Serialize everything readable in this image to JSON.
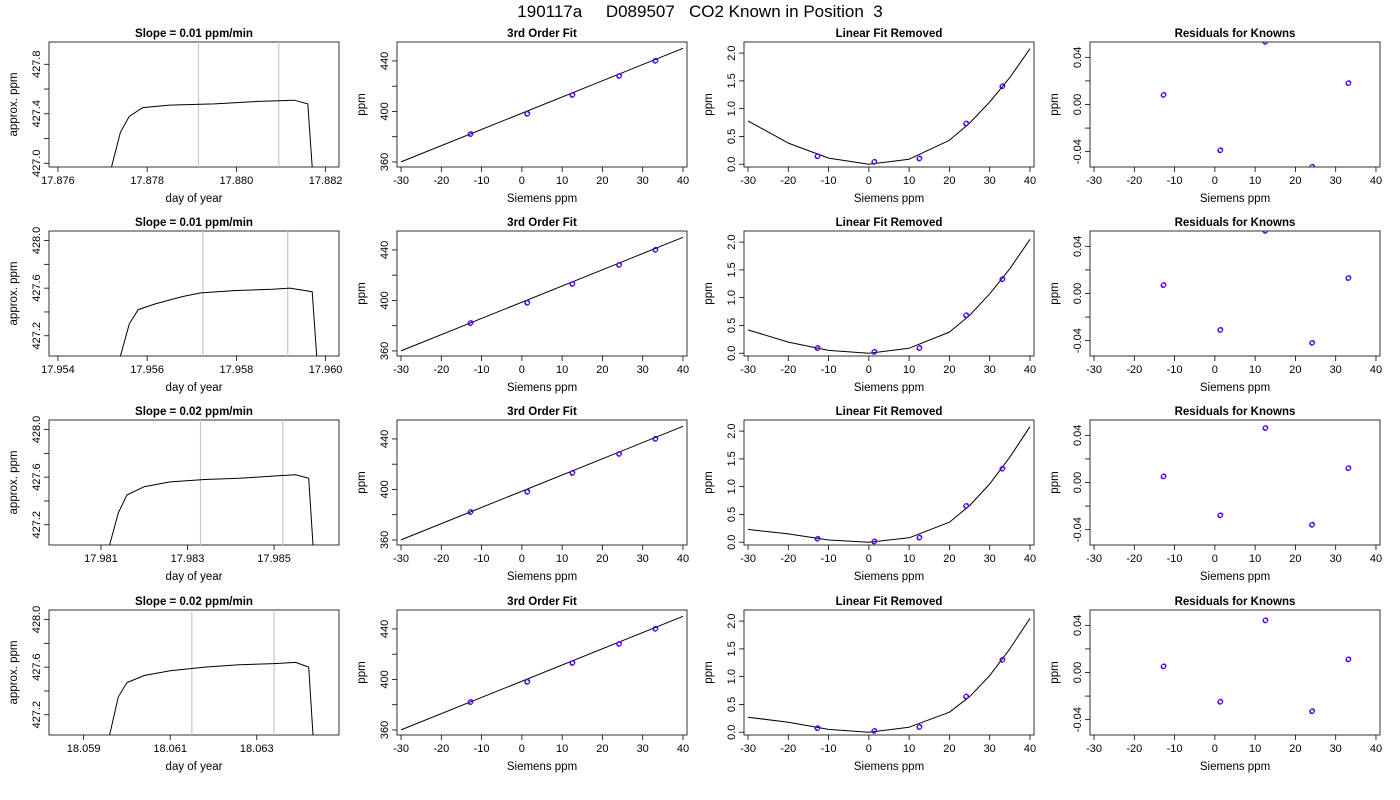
{
  "title": "190117a     D089507   CO2 Known in Position  3",
  "colors": {
    "line": "#000000",
    "vline": "#c8c8c8",
    "point_blue": "#0000ff",
    "point_purple": "#9400d3",
    "point_red": "#ff0000",
    "axis": "#000000"
  },
  "chart_data": [
    {
      "type": "line",
      "title": "Slope =  0.01  ppm/min",
      "xlabel": "day of year",
      "ylabel": "approx. ppm",
      "xlim": [
        17.8758,
        17.8823
      ],
      "ylim": [
        426.97,
        427.98
      ],
      "xticks": [
        "17.876",
        "17.878",
        "17.880",
        "17.882"
      ],
      "yticks": [
        "427.0",
        "427.4",
        "427.8"
      ],
      "extra_yticks": [
        427.2,
        427.6
      ],
      "vlines": [
        17.87915,
        17.88095
      ],
      "series": [
        {
          "x": [
            17.8772,
            17.8774,
            17.8776,
            17.8779,
            17.8785,
            17.8795,
            17.8805,
            17.8813,
            17.8816,
            17.8817
          ],
          "y": [
            426.97,
            427.25,
            427.38,
            427.45,
            427.47,
            427.48,
            427.5,
            427.51,
            427.48,
            426.97
          ]
        }
      ]
    },
    {
      "type": "scatter",
      "title": "3rd Order Fit",
      "xlabel": "Siemens ppm",
      "ylabel": "ppm",
      "xlim": [
        -31,
        41
      ],
      "ylim": [
        356,
        455
      ],
      "xticks": [
        "-30",
        "-20",
        "-10",
        "0",
        "10",
        "20",
        "30",
        "40"
      ],
      "yticks": [
        "360",
        "400",
        "440"
      ],
      "extra_yticks": [
        380,
        420
      ],
      "points": {
        "x": [
          -12.8,
          1.3,
          12.5,
          24.1,
          33.1
        ],
        "y": [
          382,
          398,
          413,
          428,
          440
        ]
      },
      "fit": {
        "x": [
          -30,
          40
        ],
        "y": [
          360,
          450
        ]
      }
    },
    {
      "type": "scatter",
      "title": "Linear Fit Removed",
      "xlabel": "Siemens ppm",
      "ylabel": "ppm",
      "xlim": [
        -31,
        41
      ],
      "ylim": [
        -0.05,
        2.2
      ],
      "xticks": [
        "-30",
        "-20",
        "-10",
        "0",
        "10",
        "20",
        "30",
        "40"
      ],
      "yticks": [
        "0.0",
        "0.5",
        "1.0",
        "1.5",
        "2.0"
      ],
      "points": {
        "x": [
          -12.8,
          1.3,
          12.5,
          24.1,
          33.1
        ],
        "y": [
          0.14,
          0.04,
          0.1,
          0.73,
          1.4
        ]
      },
      "fit": {
        "x": [
          -30,
          -20,
          -10,
          0,
          10,
          20,
          25,
          30,
          35,
          40
        ],
        "y": [
          0.78,
          0.38,
          0.11,
          0.0,
          0.09,
          0.43,
          0.74,
          1.12,
          1.56,
          2.08
        ]
      }
    },
    {
      "type": "scatter",
      "title": "Residuals for Knowns",
      "xlabel": "Siemens ppm",
      "ylabel": "ppm",
      "xlim": [
        -31,
        41
      ],
      "ylim": [
        -0.053,
        0.053
      ],
      "xticks": [
        "-30",
        "-20",
        "-10",
        "0",
        "10",
        "20",
        "30",
        "40"
      ],
      "yticks": [
        "-0.04",
        "0.00",
        "0.04"
      ],
      "extra_yticks": [
        -0.02,
        0.02
      ],
      "points": {
        "x": [
          -12.8,
          1.3,
          12.5,
          24.1,
          33.1
        ],
        "y": [
          0.008,
          -0.039,
          0.053,
          -0.053,
          0.018
        ]
      }
    },
    {
      "type": "line",
      "title": "Slope =  0.01  ppm/min",
      "xlabel": "day of year",
      "ylabel": "approx. ppm",
      "xlim": [
        17.9538,
        17.9603
      ],
      "ylim": [
        427.03,
        428.08
      ],
      "xticks": [
        "17.954",
        "17.956",
        "17.958",
        "17.960"
      ],
      "yticks": [
        "427.2",
        "427.6",
        "428.0"
      ],
      "extra_yticks": [
        427.4,
        427.8
      ],
      "vlines": [
        17.95725,
        17.95915
      ],
      "series": [
        {
          "x": [
            17.9554,
            17.9556,
            17.9558,
            17.9562,
            17.9568,
            17.9572,
            17.958,
            17.9588,
            17.9592,
            17.9597,
            17.9598
          ],
          "y": [
            427.03,
            427.3,
            427.42,
            427.47,
            427.53,
            427.56,
            427.58,
            427.59,
            427.6,
            427.57,
            427.03
          ]
        }
      ]
    },
    {
      "type": "scatter",
      "title": "3rd Order Fit",
      "xlabel": "Siemens ppm",
      "ylabel": "ppm",
      "xlim": [
        -31,
        41
      ],
      "ylim": [
        356,
        455
      ],
      "xticks": [
        "-30",
        "-20",
        "-10",
        "0",
        "10",
        "20",
        "30",
        "40"
      ],
      "yticks": [
        "360",
        "400",
        "440"
      ],
      "extra_yticks": [
        380,
        420
      ],
      "points": {
        "x": [
          -12.8,
          1.3,
          12.5,
          24.1,
          33.1
        ],
        "y": [
          382,
          398,
          413,
          428,
          440
        ]
      },
      "fit": {
        "x": [
          -30,
          40
        ],
        "y": [
          360,
          450
        ]
      }
    },
    {
      "type": "scatter",
      "title": "Linear Fit Removed",
      "xlabel": "Siemens ppm",
      "ylabel": "ppm",
      "xlim": [
        -31,
        41
      ],
      "ylim": [
        -0.05,
        2.2
      ],
      "xticks": [
        "-30",
        "-20",
        "-10",
        "0",
        "10",
        "20",
        "30",
        "40"
      ],
      "yticks": [
        "0.0",
        "0.5",
        "1.0",
        "1.5",
        "2.0"
      ],
      "points": {
        "x": [
          -12.8,
          1.3,
          12.5,
          24.1,
          33.1
        ],
        "y": [
          0.09,
          0.02,
          0.09,
          0.68,
          1.33
        ]
      },
      "fit": {
        "x": [
          -30,
          -20,
          -10,
          0,
          10,
          20,
          25,
          30,
          35,
          40
        ],
        "y": [
          0.42,
          0.2,
          0.05,
          0.0,
          0.09,
          0.38,
          0.68,
          1.07,
          1.52,
          2.05
        ]
      }
    },
    {
      "type": "scatter",
      "title": "Residuals for Knowns",
      "xlabel": "Siemens ppm",
      "ylabel": "ppm",
      "xlim": [
        -31,
        41
      ],
      "ylim": [
        -0.053,
        0.053
      ],
      "xticks": [
        "-30",
        "-20",
        "-10",
        "0",
        "10",
        "20",
        "30",
        "40"
      ],
      "yticks": [
        "-0.04",
        "0.00",
        "0.04"
      ],
      "extra_yticks": [
        -0.02,
        0.02
      ],
      "points": {
        "x": [
          -12.8,
          1.3,
          12.5,
          24.1,
          33.1
        ],
        "y": [
          0.007,
          -0.031,
          0.053,
          -0.042,
          0.013
        ]
      }
    },
    {
      "type": "line",
      "title": "Slope =  0.02  ppm/min",
      "xlabel": "day of year",
      "ylabel": "approx. ppm",
      "xlim": [
        17.9798,
        17.9865
      ],
      "ylim": [
        427.03,
        428.08
      ],
      "xticks": [
        "17.981",
        "17.983",
        "17.985"
      ],
      "yticks": [
        "427.2",
        "427.6",
        "428.0"
      ],
      "extra_yticks": [
        427.4,
        427.8
      ],
      "vlines": [
        17.9833,
        17.9852
      ],
      "series": [
        {
          "x": [
            17.9812,
            17.9814,
            17.9816,
            17.982,
            17.9826,
            17.9834,
            17.9842,
            17.985,
            17.9855,
            17.9858,
            17.9859
          ],
          "y": [
            427.03,
            427.3,
            427.45,
            427.52,
            427.56,
            427.58,
            427.59,
            427.61,
            427.62,
            427.59,
            427.03
          ]
        }
      ]
    },
    {
      "type": "scatter",
      "title": "3rd Order Fit",
      "xlabel": "Siemens ppm",
      "ylabel": "ppm",
      "xlim": [
        -31,
        41
      ],
      "ylim": [
        356,
        455
      ],
      "xticks": [
        "-30",
        "-20",
        "-10",
        "0",
        "10",
        "20",
        "30",
        "40"
      ],
      "yticks": [
        "360",
        "400",
        "440"
      ],
      "extra_yticks": [
        380,
        420
      ],
      "points": {
        "x": [
          -12.8,
          1.3,
          12.5,
          24.1,
          33.1
        ],
        "y": [
          382,
          398,
          413,
          428,
          440
        ]
      },
      "fit": {
        "x": [
          -30,
          40
        ],
        "y": [
          360,
          450
        ]
      }
    },
    {
      "type": "scatter",
      "title": "Linear Fit Removed",
      "xlabel": "Siemens ppm",
      "ylabel": "ppm",
      "xlim": [
        -31,
        41
      ],
      "ylim": [
        -0.05,
        2.2
      ],
      "xticks": [
        "-30",
        "-20",
        "-10",
        "0",
        "10",
        "20",
        "30",
        "40"
      ],
      "yticks": [
        "0.0",
        "0.5",
        "1.0",
        "1.5",
        "2.0"
      ],
      "points": {
        "x": [
          -12.8,
          1.3,
          12.5,
          24.1,
          33.1
        ],
        "y": [
          0.06,
          0.01,
          0.08,
          0.65,
          1.32
        ]
      },
      "fit": {
        "x": [
          -30,
          -20,
          -10,
          0,
          10,
          20,
          25,
          30,
          35,
          40
        ],
        "y": [
          0.23,
          0.15,
          0.04,
          0.0,
          0.08,
          0.36,
          0.66,
          1.05,
          1.53,
          2.08
        ]
      }
    },
    {
      "type": "scatter",
      "title": "Residuals for Knowns",
      "xlabel": "Siemens ppm",
      "ylabel": "ppm",
      "xlim": [
        -31,
        41
      ],
      "ylim": [
        -0.053,
        0.053
      ],
      "xticks": [
        "-30",
        "-20",
        "-10",
        "0",
        "10",
        "20",
        "30",
        "40"
      ],
      "yticks": [
        "-0.04",
        "0.00",
        "0.04"
      ],
      "extra_yticks": [
        -0.02,
        0.02
      ],
      "points": {
        "x": [
          -12.8,
          1.3,
          12.5,
          24.1,
          33.1
        ],
        "y": [
          0.005,
          -0.028,
          0.046,
          -0.036,
          0.012
        ]
      }
    },
    {
      "type": "line",
      "title": "Slope =  0.02  ppm/min",
      "xlabel": "day of year",
      "ylabel": "approx. ppm",
      "xlim": [
        18.0582,
        18.0649
      ],
      "ylim": [
        427.03,
        428.08
      ],
      "xticks": [
        "18.059",
        "18.061",
        "18.063"
      ],
      "yticks": [
        "427.2",
        "427.6",
        "428.0"
      ],
      "extra_yticks": [
        427.4,
        427.8
      ],
      "vlines": [
        18.0615,
        18.0634
      ],
      "series": [
        {
          "x": [
            18.0596,
            18.0598,
            18.06,
            18.0604,
            18.061,
            18.0618,
            18.0626,
            18.0634,
            18.0639,
            18.0642,
            18.0643
          ],
          "y": [
            427.03,
            427.35,
            427.47,
            427.53,
            427.57,
            427.6,
            427.62,
            427.63,
            427.64,
            427.6,
            427.03
          ]
        }
      ]
    },
    {
      "type": "scatter",
      "title": "3rd Order Fit",
      "xlabel": "Siemens ppm",
      "ylabel": "ppm",
      "xlim": [
        -31,
        41
      ],
      "ylim": [
        356,
        455
      ],
      "xticks": [
        "-30",
        "-20",
        "-10",
        "0",
        "10",
        "20",
        "30",
        "40"
      ],
      "yticks": [
        "360",
        "400",
        "440"
      ],
      "extra_yticks": [
        380,
        420
      ],
      "points": {
        "x": [
          -12.8,
          1.3,
          12.5,
          24.1,
          33.1
        ],
        "y": [
          382,
          398,
          413,
          428,
          440
        ]
      },
      "fit": {
        "x": [
          -30,
          40
        ],
        "y": [
          360,
          450
        ]
      }
    },
    {
      "type": "scatter",
      "title": "Linear Fit Removed",
      "xlabel": "Siemens ppm",
      "ylabel": "ppm",
      "xlim": [
        -31,
        41
      ],
      "ylim": [
        -0.05,
        2.2
      ],
      "xticks": [
        "-30",
        "-20",
        "-10",
        "0",
        "10",
        "20",
        "30",
        "40"
      ],
      "yticks": [
        "0.0",
        "0.5",
        "1.0",
        "1.5",
        "2.0"
      ],
      "points": {
        "x": [
          -12.8,
          1.3,
          12.5,
          24.1,
          33.1
        ],
        "y": [
          0.07,
          0.02,
          0.09,
          0.64,
          1.3
        ]
      },
      "fit": {
        "x": [
          -30,
          -20,
          -10,
          0,
          10,
          20,
          25,
          30,
          35,
          40
        ],
        "y": [
          0.27,
          0.18,
          0.05,
          0.0,
          0.09,
          0.36,
          0.64,
          1.02,
          1.5,
          2.05
        ]
      }
    },
    {
      "type": "scatter",
      "title": "Residuals for Knowns",
      "xlabel": "Siemens ppm",
      "ylabel": "ppm",
      "xlim": [
        -31,
        41
      ],
      "ylim": [
        -0.053,
        0.053
      ],
      "xticks": [
        "-30",
        "-20",
        "-10",
        "0",
        "10",
        "20",
        "30",
        "40"
      ],
      "yticks": [
        "-0.04",
        "0.00",
        "0.04"
      ],
      "extra_yticks": [
        -0.02,
        0.02
      ],
      "points": {
        "x": [
          -12.8,
          1.3,
          12.5,
          24.1,
          33.1
        ],
        "y": [
          0.005,
          -0.025,
          0.044,
          -0.033,
          0.011
        ]
      }
    }
  ]
}
